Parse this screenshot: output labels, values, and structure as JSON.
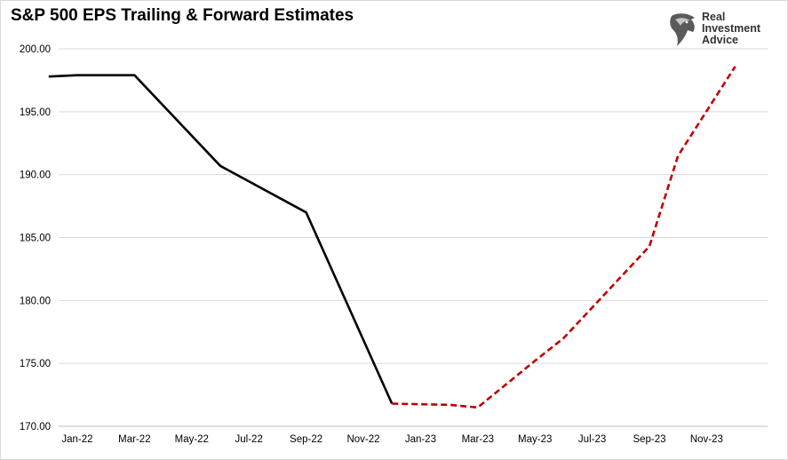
{
  "title": "S&P 500 EPS Trailing & Forward Estimates",
  "logo": {
    "icon": "eagle-head-icon",
    "lines": [
      "Real",
      "Investment",
      "Advice"
    ]
  },
  "chart_data": {
    "type": "line",
    "title": "S&P 500 EPS Trailing & Forward Estimates",
    "xlabel": "",
    "ylabel": "",
    "ylim": [
      170,
      200
    ],
    "yticks": [
      "170.00",
      "175.00",
      "180.00",
      "185.00",
      "190.00",
      "195.00",
      "200.00"
    ],
    "xticks": [
      "Jan-22",
      "Mar-22",
      "May-22",
      "Jul-22",
      "Sep-22",
      "Nov-22",
      "Jan-23",
      "Mar-23",
      "May-23",
      "Jul-23",
      "Sep-23",
      "Nov-23"
    ],
    "grid": true,
    "legend": "none",
    "series": [
      {
        "style": "solid",
        "color": "#000000",
        "points": [
          {
            "x": "2021-12",
            "y": 197.8
          },
          {
            "x": "2022-01",
            "y": 197.9
          },
          {
            "x": "2022-02",
            "y": 197.9
          },
          {
            "x": "2022-03",
            "y": 197.9
          },
          {
            "x": "2022-06",
            "y": 190.7
          },
          {
            "x": "2022-09",
            "y": 187.0
          },
          {
            "x": "2022-12",
            "y": 171.8
          }
        ]
      },
      {
        "style": "dashed",
        "color": "#c00000",
        "points": [
          {
            "x": "2022-12",
            "y": 171.8
          },
          {
            "x": "2023-02",
            "y": 171.7
          },
          {
            "x": "2023-03",
            "y": 171.5
          },
          {
            "x": "2023-05",
            "y": 175.2
          },
          {
            "x": "2023-06",
            "y": 177.0
          },
          {
            "x": "2023-09",
            "y": 184.3
          },
          {
            "x": "2023-10",
            "y": 191.5
          },
          {
            "x": "2023-12",
            "y": 198.6
          }
        ]
      }
    ]
  }
}
